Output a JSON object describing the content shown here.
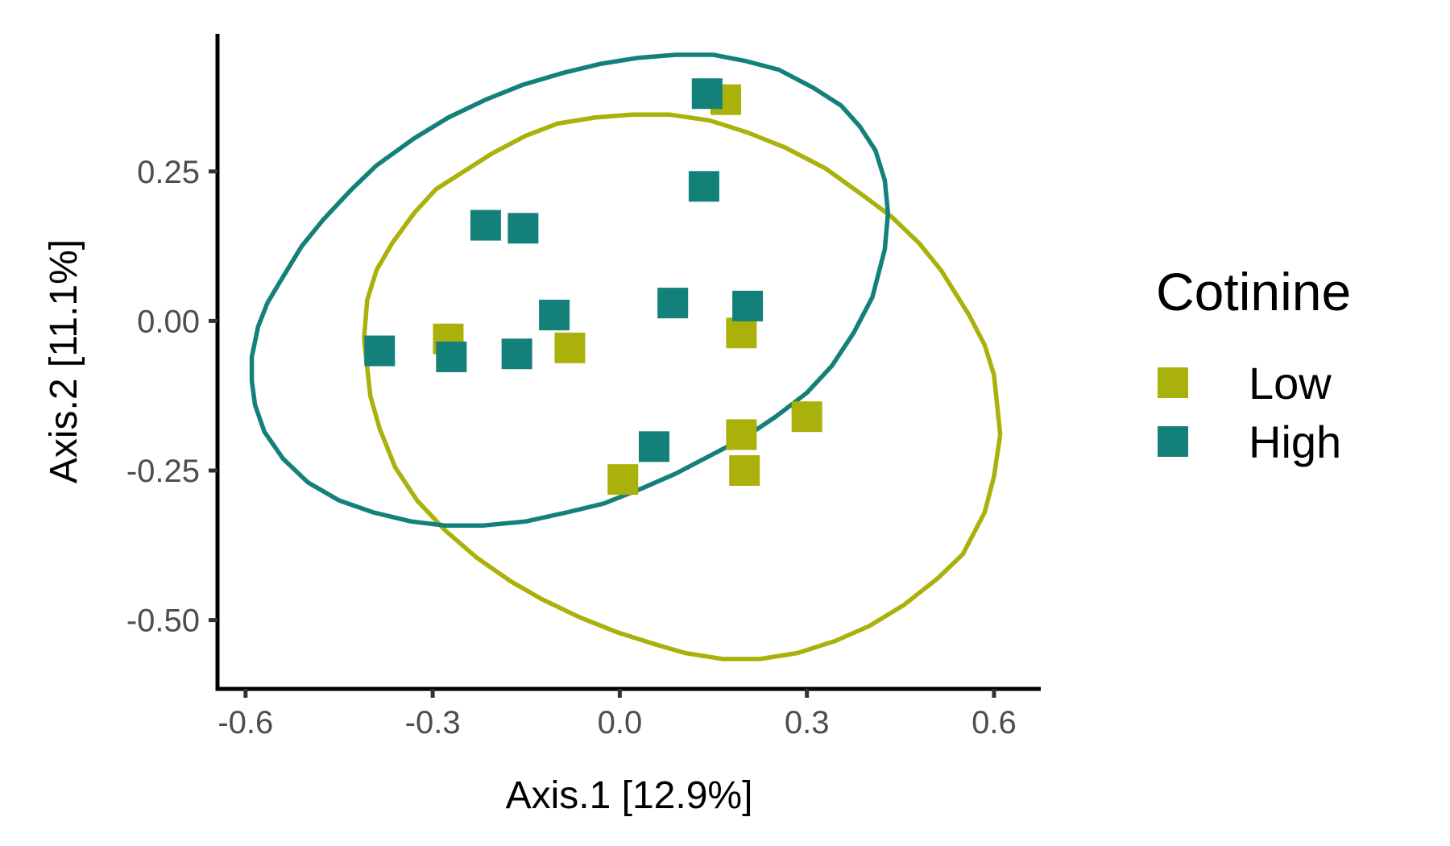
{
  "chart_data": {
    "type": "scatter",
    "title": "",
    "xlabel": "Axis.1   [12.9%]",
    "ylabel": "Axis.2   [11.1%]",
    "xlim": [
      -0.645,
      0.675
    ],
    "ylim": [
      -0.615,
      0.48
    ],
    "xticks": [
      -0.6,
      -0.3,
      0.0,
      0.3,
      0.6
    ],
    "xtick_labels": [
      "-0.6",
      "-0.3",
      "0.0",
      "0.3",
      "0.6"
    ],
    "yticks": [
      0.25,
      0.0,
      -0.25,
      -0.5
    ],
    "ytick_labels": [
      "0.25",
      "0.00",
      "-0.25",
      "-0.50"
    ],
    "grid": false,
    "legend": {
      "title": "Cotinine",
      "position": "right"
    },
    "series": [
      {
        "name": "Low",
        "color": "#abb10b",
        "marker": "square",
        "points": [
          {
            "x": 0.17,
            "y": 0.37
          },
          {
            "x": -0.275,
            "y": -0.03
          },
          {
            "x": -0.08,
            "y": -0.045
          },
          {
            "x": 0.195,
            "y": -0.02
          },
          {
            "x": 0.3,
            "y": -0.16
          },
          {
            "x": 0.195,
            "y": -0.19
          },
          {
            "x": 0.2,
            "y": -0.25
          },
          {
            "x": 0.005,
            "y": -0.265
          }
        ],
        "ellipse": [
          [
            0.61,
            -0.19
          ],
          [
            0.605,
            -0.14
          ],
          [
            0.6,
            -0.09
          ],
          [
            0.585,
            -0.04
          ],
          [
            0.56,
            0.01
          ],
          [
            0.515,
            0.085
          ],
          [
            0.48,
            0.13
          ],
          [
            0.435,
            0.175
          ],
          [
            0.39,
            0.21
          ],
          [
            0.33,
            0.255
          ],
          [
            0.265,
            0.29
          ],
          [
            0.205,
            0.315
          ],
          [
            0.145,
            0.335
          ],
          [
            0.08,
            0.345
          ],
          [
            0.02,
            0.345
          ],
          [
            -0.04,
            0.34
          ],
          [
            -0.1,
            0.33
          ],
          [
            -0.15,
            0.31
          ],
          [
            -0.205,
            0.28
          ],
          [
            -0.25,
            0.25
          ],
          [
            -0.295,
            0.22
          ],
          [
            -0.33,
            0.18
          ],
          [
            -0.365,
            0.13
          ],
          [
            -0.39,
            0.085
          ],
          [
            -0.405,
            0.035
          ],
          [
            -0.41,
            -0.03
          ],
          [
            -0.4,
            -0.125
          ],
          [
            -0.385,
            -0.18
          ],
          [
            -0.36,
            -0.245
          ],
          [
            -0.325,
            -0.3
          ],
          [
            -0.28,
            -0.35
          ],
          [
            -0.23,
            -0.395
          ],
          [
            -0.175,
            -0.435
          ],
          [
            -0.125,
            -0.465
          ],
          [
            -0.065,
            -0.495
          ],
          [
            -0.005,
            -0.52
          ],
          [
            0.055,
            -0.54
          ],
          [
            0.105,
            -0.555
          ],
          [
            0.165,
            -0.565
          ],
          [
            0.225,
            -0.565
          ],
          [
            0.285,
            -0.555
          ],
          [
            0.345,
            -0.535
          ],
          [
            0.4,
            -0.51
          ],
          [
            0.455,
            -0.475
          ],
          [
            0.51,
            -0.43
          ],
          [
            0.55,
            -0.39
          ],
          [
            0.585,
            -0.32
          ],
          [
            0.6,
            -0.26
          ],
          [
            0.61,
            -0.19
          ]
        ]
      },
      {
        "name": "High",
        "color": "#13807a",
        "marker": "square",
        "points": [
          {
            "x": 0.14,
            "y": 0.38
          },
          {
            "x": 0.135,
            "y": 0.225
          },
          {
            "x": -0.215,
            "y": 0.16
          },
          {
            "x": -0.155,
            "y": 0.155
          },
          {
            "x": -0.105,
            "y": 0.01
          },
          {
            "x": 0.085,
            "y": 0.03
          },
          {
            "x": 0.205,
            "y": 0.025
          },
          {
            "x": -0.385,
            "y": -0.05
          },
          {
            "x": -0.27,
            "y": -0.06
          },
          {
            "x": -0.165,
            "y": -0.055
          },
          {
            "x": 0.055,
            "y": -0.21
          }
        ],
        "ellipse": [
          [
            0.43,
            0.18
          ],
          [
            0.425,
            0.235
          ],
          [
            0.41,
            0.285
          ],
          [
            0.385,
            0.325
          ],
          [
            0.355,
            0.36
          ],
          [
            0.31,
            0.39
          ],
          [
            0.255,
            0.42
          ],
          [
            0.2,
            0.435
          ],
          [
            0.15,
            0.445
          ],
          [
            0.09,
            0.445
          ],
          [
            0.03,
            0.44
          ],
          [
            -0.03,
            0.43
          ],
          [
            -0.09,
            0.415
          ],
          [
            -0.155,
            0.395
          ],
          [
            -0.215,
            0.37
          ],
          [
            -0.275,
            0.34
          ],
          [
            -0.33,
            0.305
          ],
          [
            -0.39,
            0.26
          ],
          [
            -0.43,
            0.22
          ],
          [
            -0.475,
            0.17
          ],
          [
            -0.51,
            0.125
          ],
          [
            -0.545,
            0.065
          ],
          [
            -0.565,
            0.03
          ],
          [
            -0.58,
            -0.01
          ],
          [
            -0.59,
            -0.06
          ],
          [
            -0.59,
            -0.1
          ],
          [
            -0.585,
            -0.14
          ],
          [
            -0.57,
            -0.185
          ],
          [
            -0.54,
            -0.23
          ],
          [
            -0.5,
            -0.27
          ],
          [
            -0.45,
            -0.3
          ],
          [
            -0.395,
            -0.32
          ],
          [
            -0.335,
            -0.335
          ],
          [
            -0.28,
            -0.342
          ],
          [
            -0.22,
            -0.342
          ],
          [
            -0.15,
            -0.335
          ],
          [
            -0.085,
            -0.32
          ],
          [
            -0.025,
            -0.305
          ],
          [
            0.035,
            -0.28
          ],
          [
            0.09,
            -0.255
          ],
          [
            0.145,
            -0.225
          ],
          [
            0.2,
            -0.195
          ],
          [
            0.25,
            -0.16
          ],
          [
            0.3,
            -0.12
          ],
          [
            0.34,
            -0.075
          ],
          [
            0.375,
            -0.02
          ],
          [
            0.405,
            0.04
          ],
          [
            0.425,
            0.12
          ],
          [
            0.43,
            0.18
          ]
        ]
      }
    ]
  }
}
